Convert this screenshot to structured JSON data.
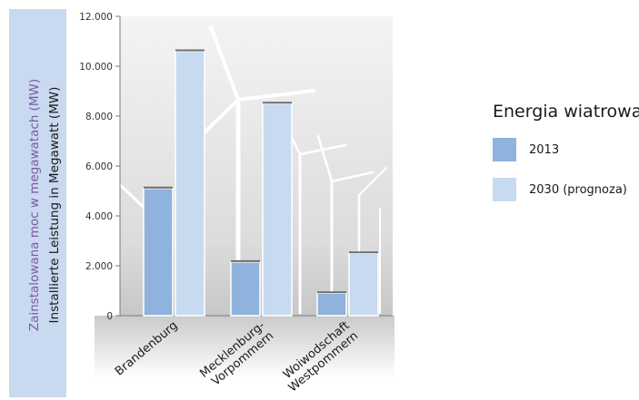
{
  "chart_data": {
    "type": "bar",
    "categories": [
      "Brandenburg",
      "Mecklenburg-Vorpommern",
      "Woiwodschaft Westpommern"
    ],
    "category_label_lines": [
      [
        "Brandenburg"
      ],
      [
        "Mecklenburg-",
        "Vorpommern"
      ],
      [
        "Woiwodschaft",
        "Westpommern"
      ]
    ],
    "series": [
      {
        "name": "2013",
        "values": [
          5100,
          2150,
          900
        ],
        "color": "#8fb3dc"
      },
      {
        "name": "2030 (prognoza)",
        "values": [
          10600,
          8500,
          2500
        ],
        "color": "#c8daf0"
      }
    ],
    "ylim": [
      0,
      12000
    ],
    "yticks": [
      0,
      2000,
      4000,
      6000,
      8000,
      10000,
      12000
    ],
    "ytick_labels": [
      "0",
      "2.000",
      "4.000",
      "6.000",
      "8.000",
      "10.000",
      "12.000"
    ],
    "ylabel_polish": "Zainstalowana moc w megawatach (MW)",
    "ylabel_german": "Installierte Leistung in Megawatt (MW)",
    "legend_title": "Energia wiatrowa",
    "legend_position": "right",
    "colors": {
      "axis_band": "#c9d9ef",
      "polish_label": "#7a5aa6",
      "plot_bg": "#e4e4e4"
    }
  }
}
